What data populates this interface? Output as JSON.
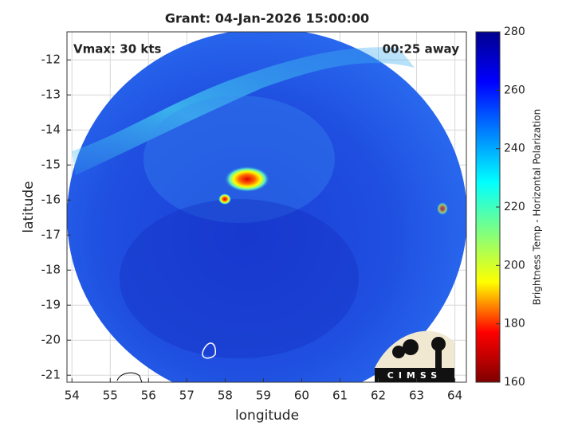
{
  "chart_data": {
    "type": "map",
    "title": "Grant: 04-Jan-2026 15:00:00",
    "annotations": [
      "Vmax: 30 kts",
      "00:25 away"
    ],
    "xlabel": "longitude",
    "ylabel": "latitude",
    "xlim": [
      53.87,
      64.3
    ],
    "xticks": [
      54,
      55,
      56,
      57,
      58,
      59,
      60,
      61,
      62,
      63,
      64
    ],
    "ylim": [
      -21.2,
      -11.2
    ],
    "yticks": [
      -21,
      -20,
      -19,
      -18,
      -17,
      -16,
      -15,
      -14,
      -13,
      -12
    ],
    "grid": true,
    "colorbar": {
      "label": "Brightness Temp - Horizontal Polarization",
      "lim": [
        160,
        280
      ],
      "ticks": [
        160,
        180,
        200,
        220,
        240,
        260,
        280
      ],
      "colormap": "jet"
    },
    "logo_text": "CIMSS"
  }
}
